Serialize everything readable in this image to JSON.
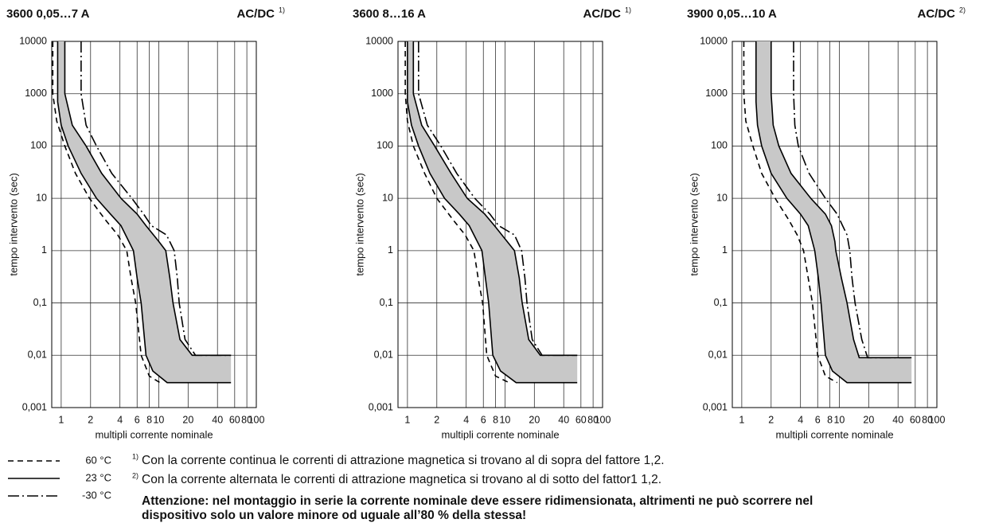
{
  "chart_data": [
    {
      "type": "line",
      "title": "3600  0,05…7 A",
      "subtitle": "AC/DC",
      "note_ref": "1)",
      "xlabel": "multipli corrente nominale",
      "ylabel": "tempo intervento (sec)",
      "xscale": "log",
      "yscale": "log",
      "grid": true,
      "band": [
        1,
        2
      ],
      "xlim": [
        0.8,
        100
      ],
      "xticks": [
        1,
        2,
        4,
        6,
        8,
        10,
        20,
        40,
        60,
        80,
        100
      ],
      "ylim": [
        0.001,
        10000
      ],
      "yticks": [
        {
          "value": 0.001,
          "label": "0,001"
        },
        {
          "value": 0.01,
          "label": "0,01"
        },
        {
          "value": 0.1,
          "label": "0,1"
        },
        1,
        10,
        100,
        1000,
        10000
      ],
      "series": [
        {
          "style": "dashed",
          "color": "#000",
          "x": [
            0.82,
            0.82,
            0.9,
            1.09,
            1.4,
            1.95,
            2.8,
            3.8,
            4.7,
            5.2,
            5.8,
            6.6,
            8,
            10.3
          ],
          "values": [
            10000,
            1000,
            300,
            100,
            30,
            10,
            4,
            2,
            1,
            0.3,
            0.1,
            0.01,
            0.004,
            0.003
          ]
        },
        {
          "style": "solid",
          "color": "#000",
          "x": [
            0.92,
            0.92,
            1.0,
            1.18,
            1.6,
            2.3,
            3.2,
            4.1,
            5.5,
            6.0,
            6.6,
            7.4,
            8.7,
            12.2,
            55
          ],
          "values": [
            10000,
            700,
            250,
            100,
            30,
            10,
            5,
            3,
            1,
            0.3,
            0.1,
            0.01,
            0.005,
            0.003,
            0.003
          ]
        },
        {
          "style": "solid",
          "color": "#000",
          "x": [
            1.09,
            1.09,
            1.3,
            1.8,
            2.6,
            4.1,
            6,
            7.4,
            10,
            11.8,
            13,
            14,
            16.5,
            22,
            55
          ],
          "values": [
            10000,
            1000,
            250,
            100,
            30,
            10,
            5,
            3,
            1.5,
            1,
            0.3,
            0.1,
            0.02,
            0.01,
            0.01
          ]
        },
        {
          "style": "dashdot",
          "color": "#000",
          "x": [
            1.6,
            1.6,
            1.8,
            2.3,
            3.3,
            5.3,
            7,
            8.4,
            12,
            14.4,
            15.5,
            16.2,
            18.6,
            23.8,
            55
          ],
          "values": [
            10000,
            1000,
            250,
            100,
            30,
            10,
            5,
            3,
            2,
            1,
            0.3,
            0.1,
            0.02,
            0.01,
            0.01
          ]
        }
      ]
    },
    {
      "type": "line",
      "title": "3600  8…16 A",
      "subtitle": "AC/DC",
      "note_ref": "1)",
      "xlabel": "multipli corrente nominale",
      "ylabel": "tempo intervento (sec)",
      "xscale": "log",
      "yscale": "log",
      "grid": true,
      "band": [
        1,
        2
      ],
      "xlim": [
        0.8,
        100
      ],
      "xticks": [
        1,
        2,
        4,
        6,
        8,
        10,
        20,
        40,
        60,
        80,
        100
      ],
      "ylim": [
        0.001,
        10000
      ],
      "yticks": [
        {
          "value": 0.001,
          "label": "0,001"
        },
        {
          "value": 0.01,
          "label": "0,01"
        },
        {
          "value": 0.1,
          "label": "0,1"
        },
        1,
        10,
        100,
        1000,
        10000
      ],
      "series": [
        {
          "style": "dashed",
          "color": "#000",
          "x": [
            0.95,
            0.95,
            1.0,
            1.15,
            1.5,
            2.0,
            2.9,
            3.9,
            4.8,
            5.3,
            5.9,
            6.5,
            8,
            11
          ],
          "values": [
            10000,
            1000,
            300,
            100,
            30,
            10,
            4,
            2,
            1,
            0.3,
            0.1,
            0.01,
            0.004,
            0.003
          ]
        },
        {
          "style": "solid",
          "color": "#000",
          "x": [
            1.0,
            1.0,
            1.1,
            1.3,
            1.7,
            2.4,
            3.4,
            4.3,
            5.8,
            6.3,
            6.8,
            7.5,
            9,
            13,
            55
          ],
          "values": [
            10000,
            700,
            250,
            100,
            30,
            10,
            5,
            3,
            1,
            0.3,
            0.1,
            0.01,
            0.005,
            0.003,
            0.003
          ]
        },
        {
          "style": "solid",
          "color": "#000",
          "x": [
            1.15,
            1.15,
            1.4,
            1.9,
            2.8,
            4.1,
            6.2,
            7.8,
            10.5,
            12.5,
            14,
            15,
            17.5,
            23,
            55
          ],
          "values": [
            10000,
            1000,
            250,
            100,
            30,
            10,
            5,
            3,
            1.5,
            1,
            0.3,
            0.1,
            0.02,
            0.01,
            0.01
          ]
        },
        {
          "style": "dashdot",
          "color": "#000",
          "x": [
            1.3,
            1.3,
            1.6,
            2.2,
            3.2,
            4.9,
            7,
            8.6,
            12.5,
            14.8,
            16,
            16.8,
            19,
            24,
            55
          ],
          "values": [
            10000,
            1000,
            250,
            100,
            30,
            10,
            5,
            3,
            2,
            1,
            0.3,
            0.1,
            0.02,
            0.01,
            0.01
          ]
        }
      ]
    },
    {
      "type": "line",
      "title": "3900  0,05…10 A",
      "subtitle": "AC/DC",
      "note_ref": "2)",
      "xlabel": "multipli corrente nominale",
      "ylabel": "tempo intervento (sec)",
      "xscale": "log",
      "yscale": "log",
      "grid": true,
      "band": [
        1,
        2
      ],
      "xlim": [
        0.8,
        100
      ],
      "xticks": [
        1,
        2,
        4,
        6,
        8,
        10,
        20,
        40,
        60,
        80,
        100
      ],
      "ylim": [
        0.001,
        10000
      ],
      "yticks": [
        {
          "value": 0.001,
          "label": "0,001"
        },
        {
          "value": 0.01,
          "label": "0,01"
        },
        {
          "value": 0.1,
          "label": "0,1"
        },
        1,
        10,
        100,
        1000,
        10000
      ],
      "series": [
        {
          "style": "dashed",
          "color": "#000",
          "x": [
            1.05,
            1.05,
            1.1,
            1.3,
            1.6,
            2.2,
            3.0,
            3.7,
            4.3,
            4.8,
            5.3,
            6.0,
            7.2,
            9.5
          ],
          "values": [
            10000,
            1000,
            300,
            100,
            30,
            10,
            4,
            2,
            1,
            0.3,
            0.1,
            0.01,
            0.004,
            0.003
          ]
        },
        {
          "style": "solid",
          "color": "#000",
          "x": [
            1.4,
            1.4,
            1.45,
            1.6,
            2.0,
            2.9,
            4.0,
            4.8,
            5.6,
            6.1,
            6.5,
            7.2,
            8.5,
            12,
            55
          ],
          "values": [
            10000,
            700,
            250,
            100,
            30,
            10,
            5,
            3,
            1,
            0.3,
            0.1,
            0.01,
            0.005,
            0.003,
            0.003
          ]
        },
        {
          "style": "solid",
          "color": "#000",
          "x": [
            2.0,
            2.0,
            2.1,
            2.4,
            3.2,
            5.1,
            7.2,
            8.3,
            9.0,
            9.2,
            10.5,
            12,
            14,
            16,
            55
          ],
          "values": [
            10000,
            1000,
            250,
            100,
            30,
            10,
            5,
            3,
            1.5,
            1,
            0.3,
            0.1,
            0.02,
            0.009,
            0.009
          ]
        },
        {
          "style": "dashdot",
          "color": "#000",
          "x": [
            3.4,
            3.4,
            3.5,
            3.8,
            4.9,
            7.2,
            9.5,
            10.8,
            12,
            12.8,
            13.5,
            14.5,
            17,
            19.5,
            55
          ],
          "values": [
            10000,
            1000,
            250,
            100,
            30,
            10,
            5,
            3,
            2,
            1,
            0.3,
            0.1,
            0.02,
            0.009,
            0.009
          ]
        }
      ]
    }
  ],
  "legend": [
    {
      "label": "60 °C",
      "style": "dashed"
    },
    {
      "label": "23 °C",
      "style": "solid"
    },
    {
      "label": "-30 °C",
      "style": "dashdot"
    }
  ],
  "footnotes": [
    {
      "mark": "1)",
      "text": "Con la corrente continua le correnti di attrazione magnetica si trovano al di sopra del fattore 1,2."
    },
    {
      "mark": "2)",
      "text": "Con la corrente alternata le correnti di attrazione magnetica si trovano al di sotto del fattor1 1,2."
    }
  ],
  "warning": [
    "Attenzione: nel montaggio in serie la corrente nominale deve essere ridimensionata, altrimenti ne può scorrere nel",
    "dispositivo solo un valore minore od uguale all’80 % della stessa!"
  ]
}
